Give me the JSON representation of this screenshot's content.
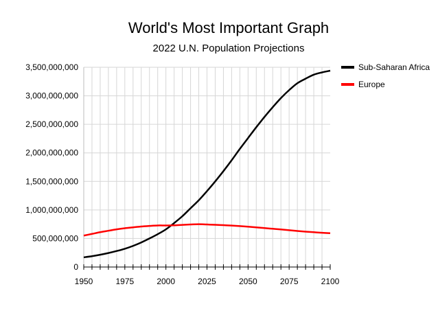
{
  "chart_data": {
    "type": "line",
    "title": "World's Most Important Graph",
    "subtitle": "2022 U.N. Population Projections",
    "xlabel": "",
    "ylabel": "",
    "xlim": [
      1950,
      2100
    ],
    "ylim": [
      0,
      3500000000
    ],
    "x_ticks": [
      1950,
      1975,
      2000,
      2025,
      2050,
      2075,
      2100
    ],
    "x_tick_labels": [
      "1950",
      "1975",
      "2000",
      "2025",
      "2050",
      "2075",
      "2100"
    ],
    "y_ticks": [
      0,
      500000000,
      1000000000,
      1500000000,
      2000000000,
      2500000000,
      3000000000,
      3500000000
    ],
    "y_tick_labels": [
      "0",
      "500,000,000",
      "1,000,000,000",
      "1,500,000,000",
      "2,000,000,000",
      "2,500,000,000",
      "3,000,000,000",
      "3,500,000,000"
    ],
    "grid": true,
    "legend_position": "top-right",
    "series": [
      {
        "name": "Sub-Saharan Africa",
        "color": "#000000",
        "x": [
          1950,
          1955,
          1960,
          1965,
          1970,
          1975,
          1980,
          1985,
          1990,
          1995,
          2000,
          2005,
          2010,
          2015,
          2020,
          2025,
          2030,
          2035,
          2040,
          2045,
          2050,
          2055,
          2060,
          2065,
          2070,
          2075,
          2080,
          2085,
          2090,
          2095,
          2100
        ],
        "values": [
          170000000,
          190000000,
          215000000,
          245000000,
          280000000,
          320000000,
          370000000,
          430000000,
          500000000,
          575000000,
          660000000,
          770000000,
          890000000,
          1030000000,
          1170000000,
          1330000000,
          1500000000,
          1680000000,
          1870000000,
          2070000000,
          2260000000,
          2450000000,
          2630000000,
          2800000000,
          2960000000,
          3100000000,
          3220000000,
          3300000000,
          3370000000,
          3410000000,
          3440000000
        ]
      },
      {
        "name": "Europe",
        "color": "#ff0000",
        "x": [
          1950,
          1955,
          1960,
          1965,
          1970,
          1975,
          1980,
          1985,
          1990,
          1995,
          2000,
          2005,
          2010,
          2015,
          2020,
          2025,
          2030,
          2035,
          2040,
          2045,
          2050,
          2055,
          2060,
          2065,
          2070,
          2075,
          2080,
          2085,
          2090,
          2095,
          2100
        ],
        "values": [
          550000000,
          580000000,
          610000000,
          635000000,
          660000000,
          680000000,
          695000000,
          710000000,
          720000000,
          728000000,
          728000000,
          730000000,
          738000000,
          745000000,
          750000000,
          745000000,
          740000000,
          733000000,
          726000000,
          717000000,
          707000000,
          695000000,
          682000000,
          670000000,
          658000000,
          645000000,
          632000000,
          620000000,
          610000000,
          600000000,
          592000000
        ]
      }
    ]
  }
}
